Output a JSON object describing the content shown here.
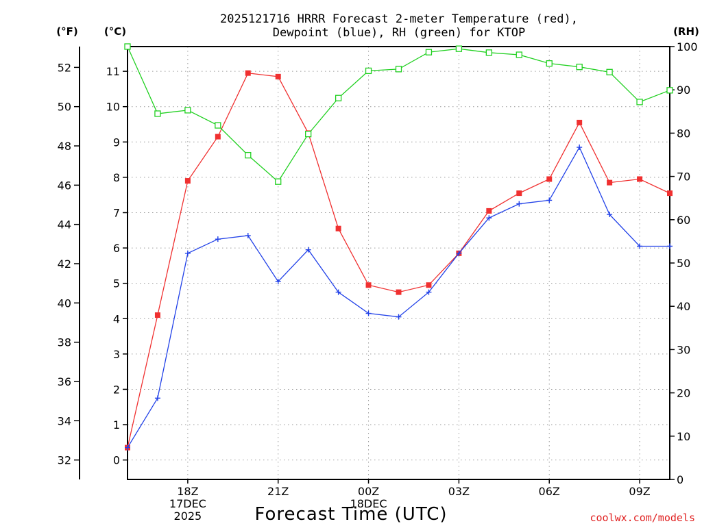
{
  "chart_data": {
    "type": "line",
    "title": [
      "2025121716 HRRR Forecast 2-meter Temperature (red),",
      "Dewpoint (blue), RH (green) for KTOP"
    ],
    "xlabel": "Forecast Time (UTC)",
    "credit": "coolwx.com/models",
    "units": {
      "fahrenheit": "(°F)",
      "celsius": "(°C)",
      "rh": "(RH)"
    },
    "x_hours": [
      0,
      1,
      2,
      3,
      4,
      5,
      6,
      7,
      8,
      9,
      10,
      11,
      12,
      13,
      14,
      15,
      16,
      17,
      18
    ],
    "x_ticks": [
      {
        "hour": 2,
        "label": [
          "18Z",
          "17DEC",
          "2025"
        ]
      },
      {
        "hour": 5,
        "label": [
          "21Z"
        ]
      },
      {
        "hour": 8,
        "label": [
          "00Z",
          "18DEC"
        ]
      },
      {
        "hour": 11,
        "label": [
          "03Z"
        ]
      },
      {
        "hour": 14,
        "label": [
          "06Z"
        ]
      },
      {
        "hour": 17,
        "label": [
          "09Z"
        ]
      }
    ],
    "xlim": [
      0,
      18
    ],
    "y_celsius": {
      "range": [
        -0.55,
        11.7
      ],
      "ticks": [
        0,
        1,
        2,
        3,
        4,
        5,
        6,
        7,
        8,
        9,
        10,
        11
      ]
    },
    "y_fahrenheit": {
      "ticks": [
        32,
        34,
        36,
        38,
        40,
        42,
        44,
        46,
        48,
        50,
        52
      ]
    },
    "y_rh": {
      "range": [
        0,
        100
      ],
      "ticks": [
        0,
        10,
        20,
        30,
        40,
        50,
        60,
        70,
        80,
        90,
        100
      ]
    },
    "series": [
      {
        "name": "Temperature",
        "axis": "celsius",
        "color": "#f03030",
        "marker": "square-filled",
        "values": [
          0.35,
          4.1,
          7.9,
          9.15,
          10.95,
          10.85,
          9.25,
          6.55,
          4.95,
          4.75,
          4.95,
          5.85,
          7.05,
          7.55,
          7.95,
          9.55,
          7.85,
          7.95,
          7.55
        ]
      },
      {
        "name": "Dewpoint",
        "axis": "celsius",
        "color": "#2040e8",
        "marker": "plus",
        "values": [
          0.35,
          1.75,
          5.85,
          6.25,
          6.35,
          5.05,
          5.95,
          4.75,
          4.15,
          4.05,
          4.75,
          5.85,
          6.85,
          7.25,
          7.35,
          8.85,
          6.95,
          6.05,
          6.05
        ]
      },
      {
        "name": "RH",
        "axis": "rh",
        "color": "#20d020",
        "marker": "square-open",
        "values": [
          100,
          84.5,
          85.3,
          81.8,
          74.9,
          68.8,
          79.8,
          88.1,
          94.4,
          94.8,
          98.7,
          99.5,
          98.6,
          98.1,
          96.1,
          95.3,
          94.1,
          87.2,
          89.9
        ]
      }
    ]
  }
}
